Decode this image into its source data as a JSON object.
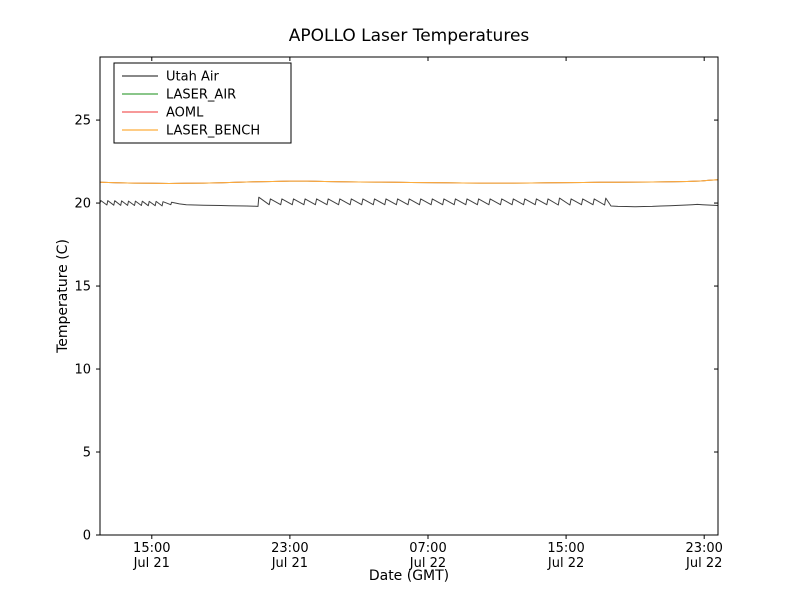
{
  "chart_data": {
    "type": "line",
    "title": "APOLLO Laser Temperatures",
    "xlabel": "Date (GMT)",
    "ylabel": "Temperature (C)",
    "x_unit": "hours since Jul 21 00:00 GMT",
    "xlim": [
      12.0,
      47.8
    ],
    "ylim": [
      0,
      28.8
    ],
    "grid": false,
    "legend_position": "upper left",
    "y_ticks": [
      0,
      5,
      10,
      15,
      20,
      25
    ],
    "x_ticks": [
      {
        "v": 15,
        "time": "15:00",
        "date": "Jul 21"
      },
      {
        "v": 23,
        "time": "23:00",
        "date": "Jul 21"
      },
      {
        "v": 31,
        "time": "07:00",
        "date": "Jul 22"
      },
      {
        "v": 39,
        "time": "15:00",
        "date": "Jul 22"
      },
      {
        "v": 47,
        "time": "23:00",
        "date": "Jul 22"
      }
    ],
    "frame_color": "#000000",
    "background_color": "#ffffff",
    "series": [
      {
        "name": "Utah Air",
        "color": "#404040",
        "points": [
          [
            12.0,
            20.0
          ],
          [
            12.05,
            20.15
          ],
          [
            12.4,
            19.88
          ],
          [
            12.45,
            20.15
          ],
          [
            12.8,
            19.87
          ],
          [
            12.85,
            20.14
          ],
          [
            13.2,
            19.86
          ],
          [
            13.25,
            20.13
          ],
          [
            13.6,
            19.86
          ],
          [
            13.65,
            20.12
          ],
          [
            14.0,
            19.85
          ],
          [
            14.05,
            20.12
          ],
          [
            14.4,
            19.85
          ],
          [
            14.45,
            20.11
          ],
          [
            14.8,
            19.84
          ],
          [
            14.85,
            20.1
          ],
          [
            15.2,
            19.84
          ],
          [
            15.25,
            20.1
          ],
          [
            15.6,
            19.83
          ],
          [
            15.65,
            20.08
          ],
          [
            16.1,
            19.9
          ],
          [
            16.15,
            20.05
          ],
          [
            16.6,
            19.95
          ],
          [
            17.0,
            19.9
          ],
          [
            17.5,
            19.88
          ],
          [
            18.0,
            19.87
          ],
          [
            18.5,
            19.86
          ],
          [
            19.0,
            19.85
          ],
          [
            19.5,
            19.84
          ],
          [
            20.0,
            19.83
          ],
          [
            20.5,
            19.82
          ],
          [
            21.0,
            19.81
          ],
          [
            21.15,
            19.8
          ],
          [
            21.2,
            20.35
          ],
          [
            21.8,
            19.9
          ],
          [
            21.87,
            20.25
          ],
          [
            22.47,
            19.9
          ],
          [
            22.54,
            20.25
          ],
          [
            23.14,
            19.9
          ],
          [
            23.21,
            20.25
          ],
          [
            23.81,
            19.9
          ],
          [
            23.88,
            20.25
          ],
          [
            24.48,
            19.9
          ],
          [
            24.55,
            20.25
          ],
          [
            25.15,
            19.9
          ],
          [
            25.22,
            20.25
          ],
          [
            25.82,
            19.9
          ],
          [
            25.89,
            20.25
          ],
          [
            26.49,
            19.9
          ],
          [
            26.56,
            20.25
          ],
          [
            27.16,
            19.9
          ],
          [
            27.23,
            20.25
          ],
          [
            27.83,
            19.9
          ],
          [
            27.9,
            20.25
          ],
          [
            28.5,
            19.9
          ],
          [
            28.57,
            20.25
          ],
          [
            29.17,
            19.9
          ],
          [
            29.24,
            20.25
          ],
          [
            29.84,
            19.9
          ],
          [
            29.91,
            20.25
          ],
          [
            30.51,
            19.9
          ],
          [
            30.58,
            20.25
          ],
          [
            31.18,
            19.9
          ],
          [
            31.25,
            20.25
          ],
          [
            31.85,
            19.9
          ],
          [
            31.92,
            20.25
          ],
          [
            32.52,
            19.9
          ],
          [
            32.59,
            20.25
          ],
          [
            33.19,
            19.9
          ],
          [
            33.26,
            20.25
          ],
          [
            33.86,
            19.9
          ],
          [
            33.93,
            20.25
          ],
          [
            34.53,
            19.9
          ],
          [
            34.6,
            20.25
          ],
          [
            35.2,
            19.9
          ],
          [
            35.27,
            20.25
          ],
          [
            35.87,
            19.9
          ],
          [
            35.94,
            20.25
          ],
          [
            36.54,
            19.9
          ],
          [
            36.61,
            20.25
          ],
          [
            37.21,
            19.9
          ],
          [
            37.28,
            20.25
          ],
          [
            37.88,
            19.9
          ],
          [
            37.95,
            20.25
          ],
          [
            38.55,
            19.88
          ],
          [
            38.62,
            20.3
          ],
          [
            39.22,
            19.88
          ],
          [
            39.29,
            20.25
          ],
          [
            39.89,
            19.9
          ],
          [
            39.96,
            20.25
          ],
          [
            40.56,
            19.9
          ],
          [
            40.63,
            20.25
          ],
          [
            41.23,
            19.88
          ],
          [
            41.3,
            20.3
          ],
          [
            41.6,
            19.82
          ],
          [
            42.0,
            19.8
          ],
          [
            42.5,
            19.79
          ],
          [
            43.0,
            19.78
          ],
          [
            43.5,
            19.79
          ],
          [
            44.0,
            19.8
          ],
          [
            44.5,
            19.82
          ],
          [
            45.0,
            19.84
          ],
          [
            45.5,
            19.86
          ],
          [
            46.0,
            19.88
          ],
          [
            46.3,
            19.9
          ],
          [
            46.6,
            19.92
          ],
          [
            46.9,
            19.9
          ],
          [
            47.2,
            19.88
          ],
          [
            47.5,
            19.87
          ],
          [
            47.8,
            19.85
          ]
        ]
      },
      {
        "name": "LASER_AIR",
        "color": "#44a544",
        "points": [
          [
            12.0,
            21.25
          ],
          [
            13.0,
            21.22
          ],
          [
            14.0,
            21.2
          ],
          [
            15.0,
            21.19
          ],
          [
            16.0,
            21.18
          ],
          [
            17.0,
            21.19
          ],
          [
            18.0,
            21.2
          ],
          [
            19.0,
            21.22
          ],
          [
            20.0,
            21.25
          ],
          [
            21.0,
            21.28
          ],
          [
            22.0,
            21.3
          ],
          [
            23.0,
            21.32
          ],
          [
            24.0,
            21.32
          ],
          [
            25.0,
            21.3
          ],
          [
            26.0,
            21.28
          ],
          [
            27.0,
            21.27
          ],
          [
            28.0,
            21.26
          ],
          [
            29.0,
            21.25
          ],
          [
            30.0,
            21.24
          ],
          [
            31.0,
            21.23
          ],
          [
            32.0,
            21.22
          ],
          [
            33.0,
            21.21
          ],
          [
            34.0,
            21.2
          ],
          [
            35.0,
            21.2
          ],
          [
            36.0,
            21.2
          ],
          [
            37.0,
            21.21
          ],
          [
            38.0,
            21.22
          ],
          [
            39.0,
            21.23
          ],
          [
            40.0,
            21.24
          ],
          [
            41.0,
            21.25
          ],
          [
            42.0,
            21.25
          ],
          [
            43.0,
            21.26
          ],
          [
            44.0,
            21.27
          ],
          [
            45.0,
            21.28
          ],
          [
            46.0,
            21.3
          ],
          [
            46.8,
            21.33
          ],
          [
            47.3,
            21.38
          ],
          [
            47.8,
            21.4
          ]
        ]
      },
      {
        "name": "AOML",
        "color": "#f25c5c",
        "points": [
          [
            12.0,
            21.25
          ],
          [
            13.0,
            21.22
          ],
          [
            14.0,
            21.2
          ],
          [
            15.0,
            21.19
          ],
          [
            16.0,
            21.18
          ],
          [
            17.0,
            21.19
          ],
          [
            18.0,
            21.2
          ],
          [
            19.0,
            21.22
          ],
          [
            20.0,
            21.25
          ],
          [
            21.0,
            21.28
          ],
          [
            22.0,
            21.3
          ],
          [
            23.0,
            21.32
          ],
          [
            24.0,
            21.32
          ],
          [
            25.0,
            21.3
          ],
          [
            26.0,
            21.28
          ],
          [
            27.0,
            21.27
          ],
          [
            28.0,
            21.26
          ],
          [
            29.0,
            21.25
          ],
          [
            30.0,
            21.24
          ],
          [
            31.0,
            21.23
          ],
          [
            32.0,
            21.22
          ],
          [
            33.0,
            21.21
          ],
          [
            34.0,
            21.2
          ],
          [
            35.0,
            21.2
          ],
          [
            36.0,
            21.2
          ],
          [
            37.0,
            21.21
          ],
          [
            38.0,
            21.22
          ],
          [
            39.0,
            21.23
          ],
          [
            40.0,
            21.24
          ],
          [
            41.0,
            21.25
          ],
          [
            42.0,
            21.25
          ],
          [
            43.0,
            21.26
          ],
          [
            44.0,
            21.27
          ],
          [
            45.0,
            21.28
          ],
          [
            46.0,
            21.3
          ],
          [
            46.8,
            21.33
          ],
          [
            47.3,
            21.38
          ],
          [
            47.8,
            21.4
          ]
        ]
      },
      {
        "name": "LASER_BENCH",
        "color": "#fdae3c",
        "points": [
          [
            12.0,
            21.25
          ],
          [
            13.0,
            21.22
          ],
          [
            14.0,
            21.2
          ],
          [
            15.0,
            21.19
          ],
          [
            16.0,
            21.18
          ],
          [
            17.0,
            21.19
          ],
          [
            18.0,
            21.2
          ],
          [
            19.0,
            21.22
          ],
          [
            20.0,
            21.25
          ],
          [
            21.0,
            21.28
          ],
          [
            22.0,
            21.3
          ],
          [
            23.0,
            21.32
          ],
          [
            24.0,
            21.32
          ],
          [
            25.0,
            21.3
          ],
          [
            26.0,
            21.28
          ],
          [
            27.0,
            21.27
          ],
          [
            28.0,
            21.26
          ],
          [
            29.0,
            21.25
          ],
          [
            30.0,
            21.24
          ],
          [
            31.0,
            21.23
          ],
          [
            32.0,
            21.22
          ],
          [
            33.0,
            21.21
          ],
          [
            34.0,
            21.2
          ],
          [
            35.0,
            21.2
          ],
          [
            36.0,
            21.2
          ],
          [
            37.0,
            21.21
          ],
          [
            38.0,
            21.22
          ],
          [
            39.0,
            21.23
          ],
          [
            40.0,
            21.24
          ],
          [
            41.0,
            21.25
          ],
          [
            42.0,
            21.25
          ],
          [
            43.0,
            21.26
          ],
          [
            44.0,
            21.27
          ],
          [
            45.0,
            21.28
          ],
          [
            46.0,
            21.3
          ],
          [
            46.8,
            21.33
          ],
          [
            47.3,
            21.38
          ],
          [
            47.8,
            21.4
          ]
        ]
      }
    ]
  }
}
